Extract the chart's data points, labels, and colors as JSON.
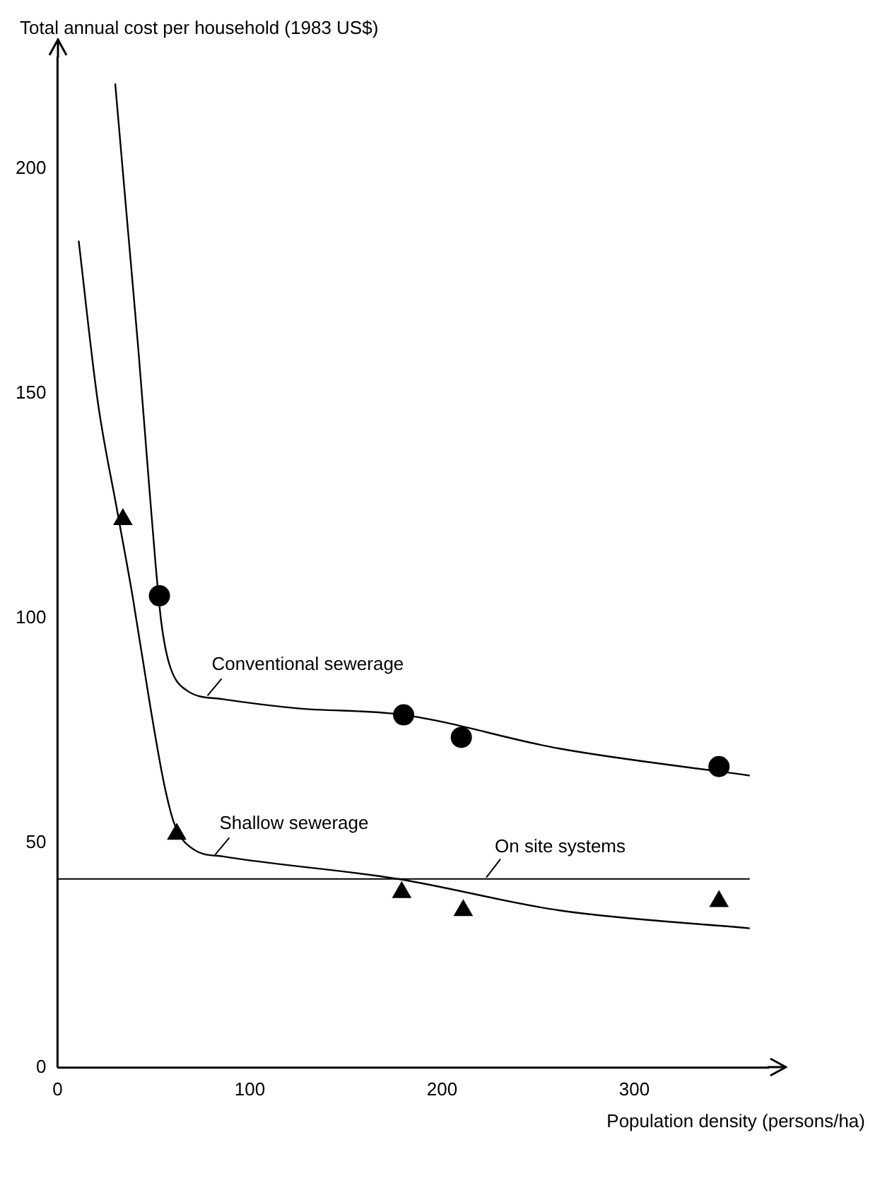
{
  "chart_data": {
    "type": "line",
    "xlabel": "Population density (persons/ha)",
    "ylabel": "Total annual cost per household (1983 US$)",
    "xlim": [
      0,
      370
    ],
    "ylim": [
      0,
      225
    ],
    "xticks": [
      0,
      100,
      200,
      300
    ],
    "yticks": [
      0,
      50,
      100,
      150,
      200
    ],
    "grid": false,
    "legend": false,
    "series": [
      {
        "type": "line",
        "color": "#000000",
        "marker": "none",
        "x": [
          30,
          36.5,
          42,
          47,
          51,
          54,
          58,
          67,
          86,
          124,
          180,
          261,
          360
        ],
        "values": [
          219,
          187,
          160,
          133,
          112,
          99,
          90,
          84,
          82,
          80,
          78.5,
          71,
          65
        ]
      },
      {
        "type": "scatter",
        "color": "#000000",
        "marker": "circle",
        "x": [
          53,
          180,
          210,
          344
        ],
        "values": [
          105,
          78.5,
          73.5,
          67
        ]
      },
      {
        "type": "line",
        "color": "#000000",
        "marker": "none",
        "x": [
          11,
          21,
          31,
          39,
          48,
          55.5,
          61,
          71,
          86,
          177,
          261,
          360
        ],
        "values": [
          184,
          148,
          124,
          105,
          81,
          63,
          54,
          48.5,
          47,
          42,
          35,
          31
        ]
      },
      {
        "type": "scatter",
        "color": "#000000",
        "marker": "triangle",
        "x": [
          34,
          62,
          179,
          211,
          344
        ],
        "values": [
          122,
          52,
          39,
          35,
          37
        ]
      }
    ],
    "ref_lines": [
      {
        "axis": "y",
        "value": 42,
        "label": "On site systems",
        "color": "#000000"
      }
    ],
    "annotations": [
      {
        "text": "Conventional sewerage",
        "x": 78,
        "y": 82.8
      },
      {
        "text": "Shallow sewerage",
        "x": 82,
        "y": 47.4
      }
    ]
  }
}
